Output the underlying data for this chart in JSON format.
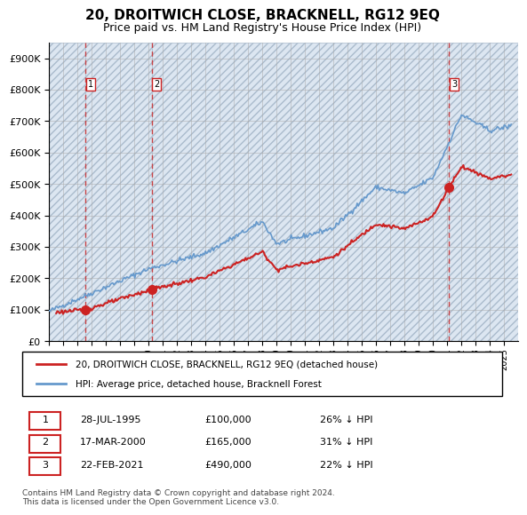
{
  "title": "20, DROITWICH CLOSE, BRACKNELL, RG12 9EQ",
  "subtitle": "Price paid vs. HM Land Registry's House Price Index (HPI)",
  "ylabel": "",
  "ylim": [
    0,
    950000
  ],
  "yticks": [
    0,
    100000,
    200000,
    300000,
    400000,
    500000,
    600000,
    700000,
    800000,
    900000
  ],
  "ytick_labels": [
    "£0",
    "£100K",
    "£200K",
    "£300K",
    "£400K",
    "£500K",
    "£600K",
    "£700K",
    "£800K",
    "£900K"
  ],
  "xlim_start": 1993.0,
  "xlim_end": 2026.0,
  "sale_dates": [
    1995.57,
    2000.21,
    2021.14
  ],
  "sale_prices": [
    100000,
    165000,
    490000
  ],
  "sale_labels": [
    "1",
    "2",
    "3"
  ],
  "hpi_color": "#6699cc",
  "price_color": "#cc2222",
  "marker_color": "#cc2222",
  "dashed_color": "#cc2222",
  "legend_entries": [
    "20, DROITWICH CLOSE, BRACKNELL, RG12 9EQ (detached house)",
    "HPI: Average price, detached house, Bracknell Forest"
  ],
  "table_rows": [
    [
      "1",
      "28-JUL-1995",
      "£100,000",
      "26% ↓ HPI"
    ],
    [
      "2",
      "17-MAR-2000",
      "£165,000",
      "31% ↓ HPI"
    ],
    [
      "3",
      "22-FEB-2021",
      "£490,000",
      "22% ↓ HPI"
    ]
  ],
  "footnote": "Contains HM Land Registry data © Crown copyright and database right 2024.\nThis data is licensed under the Open Government Licence v3.0.",
  "background_hatch_color": "#dce6f1",
  "grid_color": "#aaaaaa",
  "hatch_pattern": "////"
}
